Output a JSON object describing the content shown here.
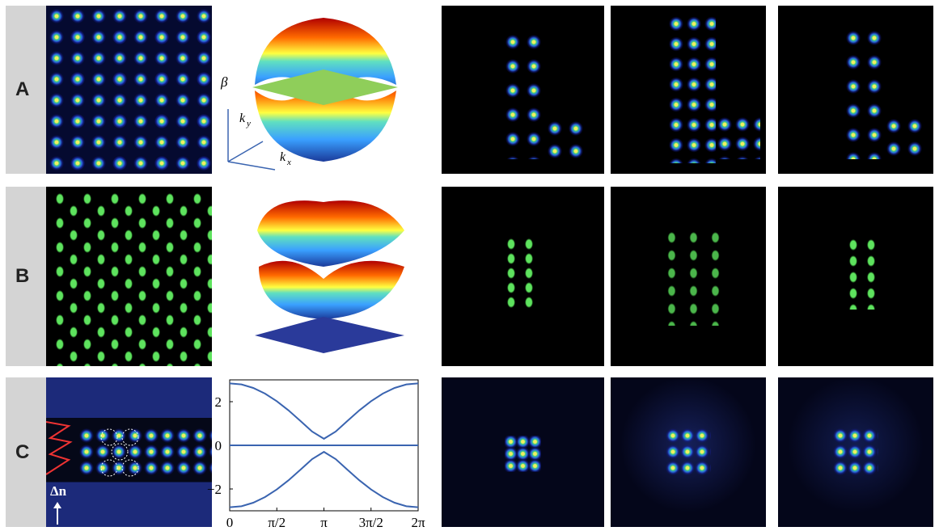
{
  "panel_labels": [
    "A",
    "B",
    "C"
  ],
  "axis_symbols": {
    "beta": "β",
    "ky": {
      "symbol": "k",
      "subscript": "y"
    },
    "kx": {
      "symbol": "k",
      "subscript": "x"
    }
  },
  "index_label": "Δn",
  "chart_data": {
    "type": "line",
    "x": [
      0,
      0.393,
      0.785,
      1.178,
      1.571,
      1.963,
      2.356,
      2.749,
      3.142,
      3.534,
      3.927,
      4.32,
      4.712,
      5.105,
      5.498,
      5.89,
      6.283
    ],
    "xlim": [
      0,
      6.283
    ],
    "ylim": [
      -3,
      3
    ],
    "yticks": [
      {
        "value": -2,
        "label": "−2"
      },
      0,
      2
    ],
    "xticks": [
      0,
      {
        "value": 1.571,
        "label": "π/2"
      },
      {
        "value": 3.142,
        "label": "π"
      },
      {
        "value": 4.712,
        "label": "3π/2"
      },
      {
        "value": 6.283,
        "label": "2π"
      }
    ],
    "series": [
      {
        "color": "#3a64b0",
        "values": [
          2.84,
          2.79,
          2.63,
          2.37,
          2.02,
          1.6,
          1.12,
          0.63,
          0.3,
          0.63,
          1.12,
          1.6,
          2.02,
          2.37,
          2.63,
          2.79,
          2.84
        ]
      },
      {
        "color": "#3a64b0",
        "values": [
          0,
          0,
          0,
          0,
          0,
          0,
          0,
          0,
          0,
          0,
          0,
          0,
          0,
          0,
          0,
          0,
          0
        ]
      },
      {
        "color": "#3a64b0",
        "values": [
          -2.84,
          -2.79,
          -2.63,
          -2.37,
          -2.02,
          -1.6,
          -1.12,
          -0.63,
          -0.3,
          -0.63,
          -1.12,
          -1.6,
          -2.02,
          -2.37,
          -2.63,
          -2.79,
          -2.84
        ]
      }
    ]
  }
}
